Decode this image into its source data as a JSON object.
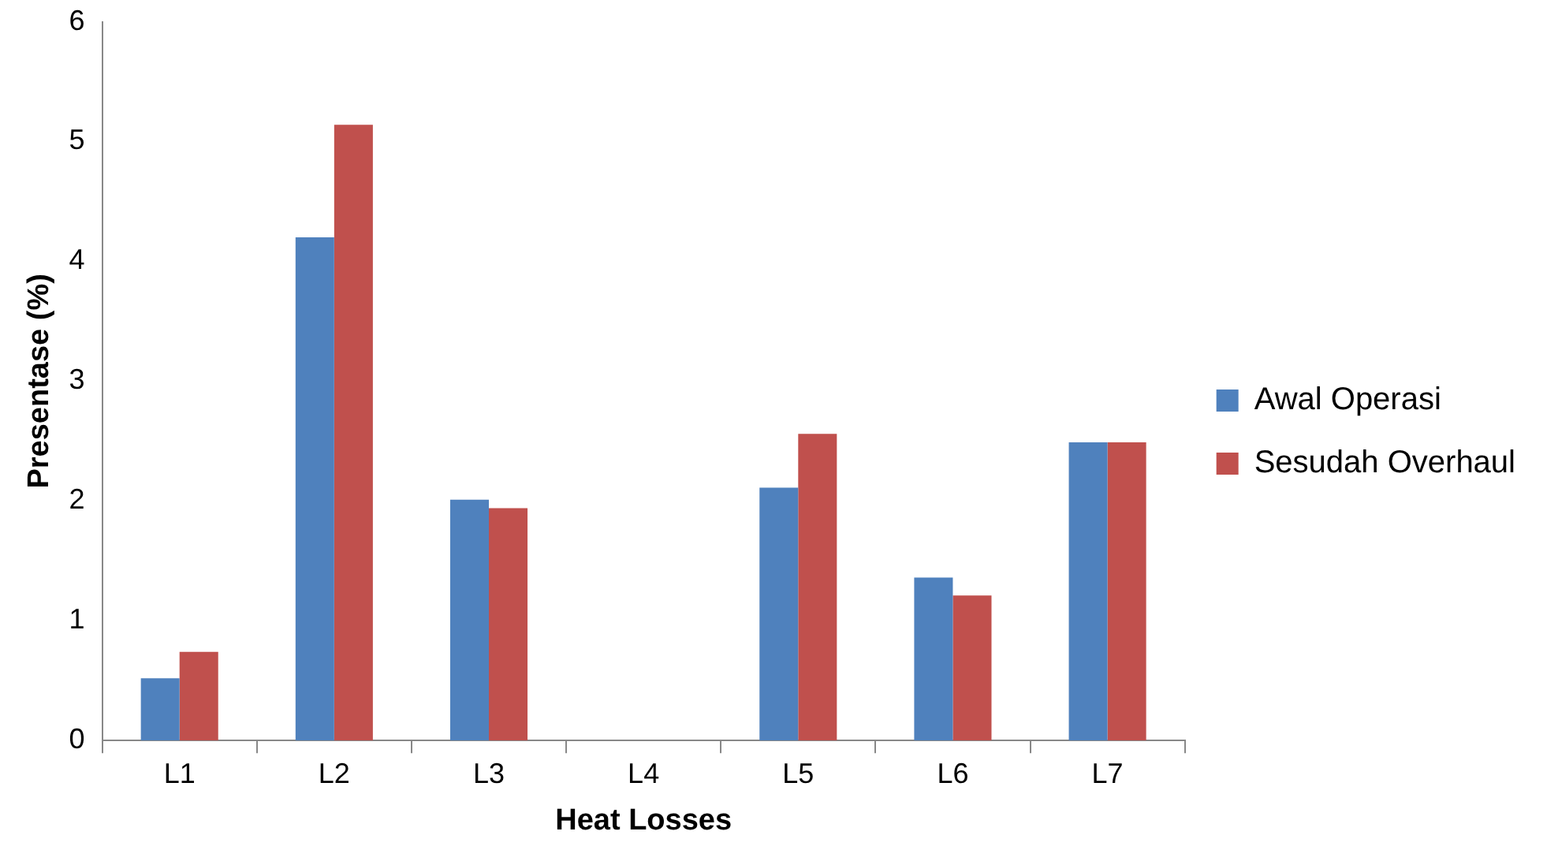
{
  "chart_data": {
    "type": "bar",
    "xlabel": "Heat Losses",
    "ylabel": "Presentase (%)",
    "categories": [
      "L1",
      "L2",
      "L3",
      "L4",
      "L5",
      "L6",
      "L7"
    ],
    "series": [
      {
        "name": "Awal Operasi",
        "color": "#4f81bd",
        "values": [
          0.52,
          4.2,
          2.01,
          0,
          2.11,
          1.36,
          2.49
        ]
      },
      {
        "name": "Sesudah Overhaul",
        "color": "#c0504d",
        "values": [
          0.74,
          5.14,
          1.94,
          0,
          2.56,
          1.21,
          2.49
        ]
      }
    ],
    "ylim": [
      0,
      6
    ],
    "yticks": [
      0,
      1,
      2,
      3,
      4,
      5,
      6
    ],
    "legend": "right"
  }
}
